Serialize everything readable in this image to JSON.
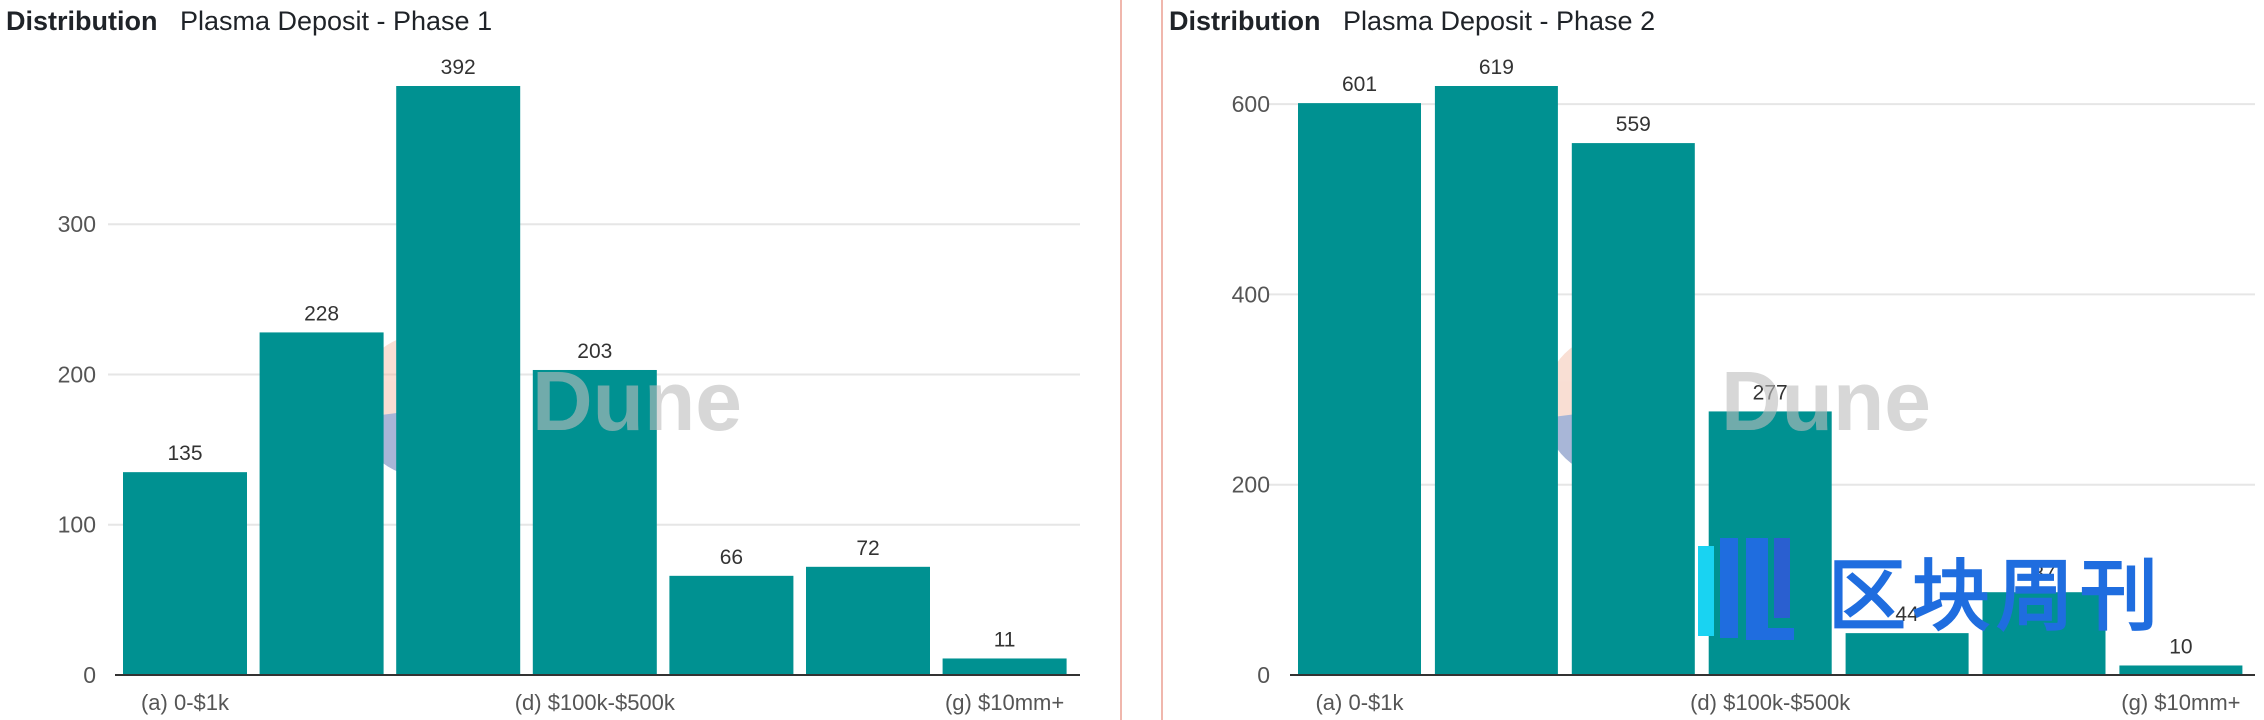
{
  "panels": [
    {
      "label": "Distribution",
      "title": "Plasma Deposit - Phase 1"
    },
    {
      "label": "Distribution",
      "title": "Plasma Deposit - Phase 2"
    }
  ],
  "watermark": {
    "text": "Dune"
  },
  "overlay_brand": {
    "text": "区块周刊"
  },
  "colors": {
    "bar": "#009191",
    "grid": "#e6e6e6",
    "axis": "#333333",
    "accent_brand": "#1f6ddf"
  },
  "chart_data": [
    {
      "type": "bar",
      "title": "Plasma Deposit - Phase 1",
      "categories": [
        "(a) 0-$1k",
        "",
        "",
        "(d) $100k-$500k",
        "",
        "",
        "(g) $10mm+"
      ],
      "values": [
        135,
        228,
        392,
        203,
        66,
        72,
        11
      ],
      "yticks": [
        0,
        100,
        200,
        300
      ],
      "ylim": [
        0,
        392
      ],
      "grid": true,
      "legend": "none"
    },
    {
      "type": "bar",
      "title": "Plasma Deposit - Phase 2",
      "categories": [
        "(a) 0-$1k",
        "",
        "",
        "(d) $100k-$500k",
        "",
        "",
        "(g) $10mm+"
      ],
      "values": [
        601,
        619,
        559,
        277,
        44,
        87,
        10
      ],
      "yticks": [
        0,
        200,
        400,
        600
      ],
      "ylim": [
        0,
        619
      ],
      "grid": true,
      "legend": "none"
    }
  ]
}
